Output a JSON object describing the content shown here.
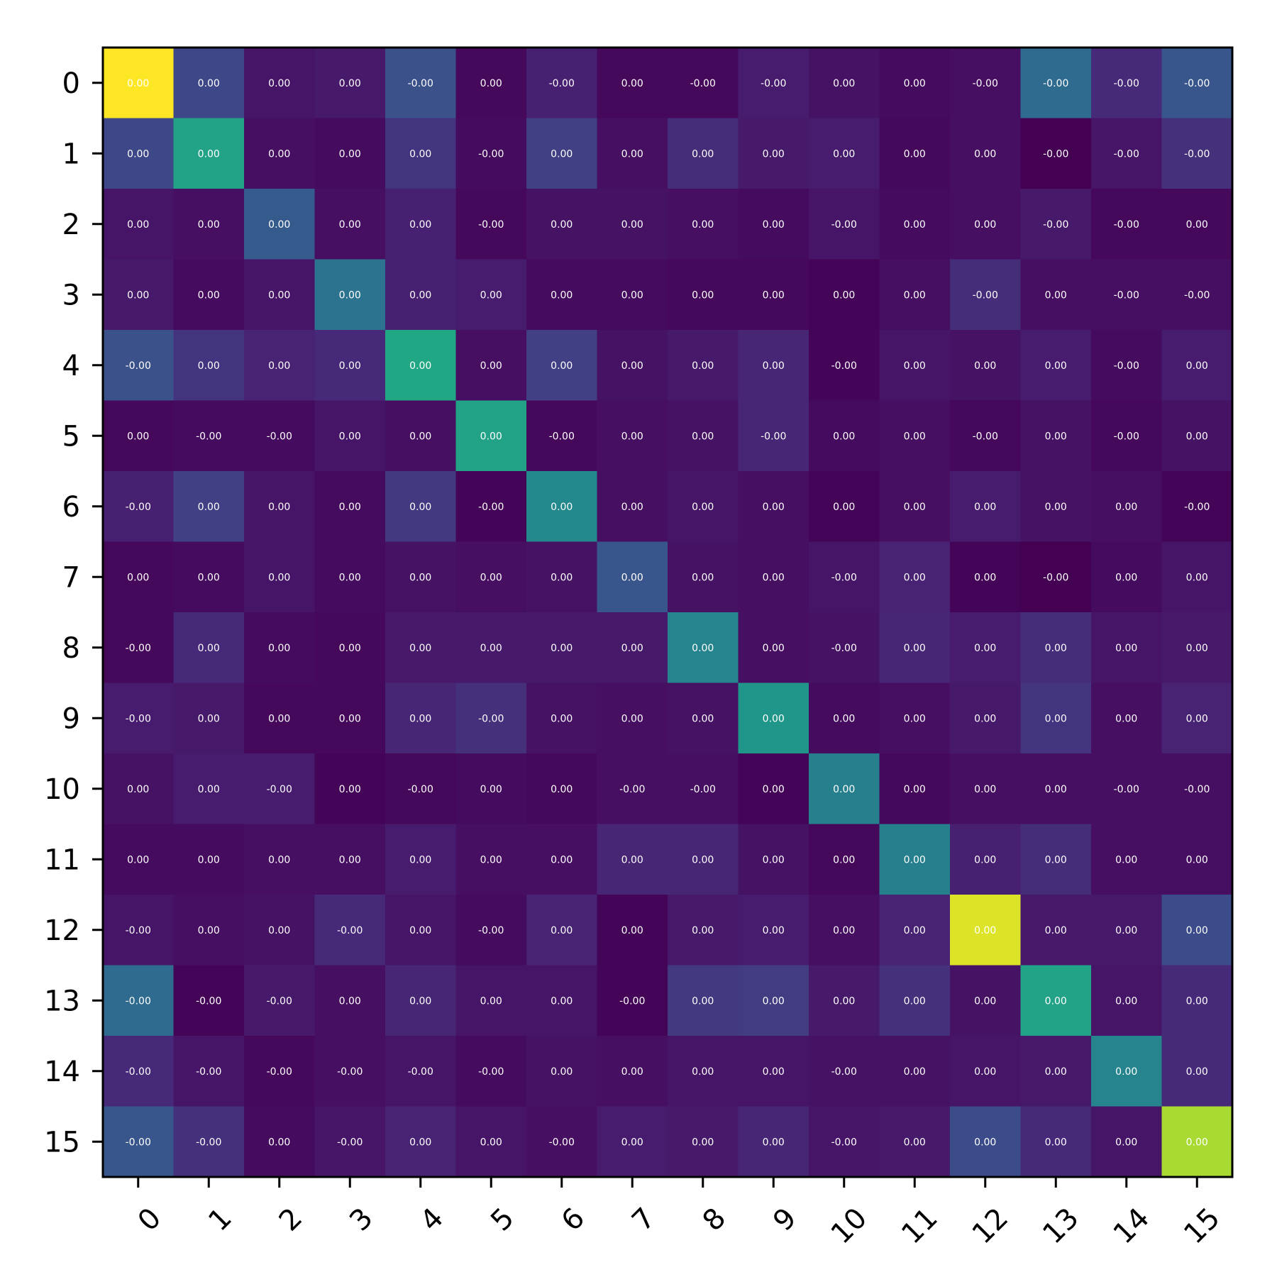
{
  "chart_data": {
    "type": "heatmap",
    "colormap": "viridis",
    "x_labels": [
      "0",
      "1",
      "2",
      "3",
      "4",
      "5",
      "6",
      "7",
      "8",
      "9",
      "10",
      "11",
      "12",
      "13",
      "14",
      "15"
    ],
    "y_labels": [
      "0",
      "1",
      "2",
      "3",
      "4",
      "5",
      "6",
      "7",
      "8",
      "9",
      "10",
      "11",
      "12",
      "13",
      "14",
      "15"
    ],
    "color_values": [
      [
        1.0,
        0.22,
        0.06,
        0.07,
        0.25,
        0.02,
        0.09,
        0.02,
        0.02,
        0.08,
        0.05,
        0.03,
        0.04,
        0.35,
        0.12,
        0.27
      ],
      [
        0.22,
        0.58,
        0.04,
        0.03,
        0.15,
        0.03,
        0.19,
        0.04,
        0.13,
        0.07,
        0.08,
        0.02,
        0.04,
        0.0,
        0.06,
        0.14
      ],
      [
        0.06,
        0.04,
        0.29,
        0.04,
        0.09,
        0.02,
        0.05,
        0.05,
        0.04,
        0.03,
        0.06,
        0.03,
        0.04,
        0.07,
        0.02,
        0.02
      ],
      [
        0.07,
        0.03,
        0.06,
        0.38,
        0.09,
        0.08,
        0.03,
        0.03,
        0.02,
        0.02,
        0.01,
        0.04,
        0.13,
        0.04,
        0.04,
        0.04
      ],
      [
        0.25,
        0.15,
        0.1,
        0.12,
        0.6,
        0.04,
        0.19,
        0.05,
        0.07,
        0.11,
        0.01,
        0.06,
        0.05,
        0.08,
        0.03,
        0.08
      ],
      [
        0.02,
        0.03,
        0.03,
        0.06,
        0.04,
        0.58,
        0.02,
        0.04,
        0.05,
        0.11,
        0.03,
        0.04,
        0.02,
        0.05,
        0.02,
        0.05
      ],
      [
        0.09,
        0.19,
        0.06,
        0.03,
        0.17,
        0.01,
        0.47,
        0.04,
        0.06,
        0.04,
        0.01,
        0.04,
        0.08,
        0.05,
        0.04,
        0.01
      ],
      [
        0.02,
        0.03,
        0.06,
        0.03,
        0.05,
        0.04,
        0.05,
        0.27,
        0.05,
        0.04,
        0.06,
        0.1,
        0.01,
        0.0,
        0.03,
        0.06
      ],
      [
        0.02,
        0.12,
        0.03,
        0.02,
        0.07,
        0.07,
        0.07,
        0.07,
        0.45,
        0.04,
        0.05,
        0.11,
        0.08,
        0.13,
        0.06,
        0.07
      ],
      [
        0.08,
        0.07,
        0.02,
        0.02,
        0.11,
        0.14,
        0.05,
        0.04,
        0.05,
        0.52,
        0.03,
        0.04,
        0.07,
        0.15,
        0.04,
        0.1
      ],
      [
        0.05,
        0.08,
        0.08,
        0.01,
        0.02,
        0.03,
        0.02,
        0.04,
        0.04,
        0.01,
        0.43,
        0.02,
        0.04,
        0.04,
        0.04,
        0.04
      ],
      [
        0.03,
        0.03,
        0.04,
        0.04,
        0.08,
        0.04,
        0.04,
        0.11,
        0.11,
        0.05,
        0.02,
        0.43,
        0.09,
        0.13,
        0.04,
        0.04
      ],
      [
        0.06,
        0.04,
        0.05,
        0.12,
        0.06,
        0.03,
        0.1,
        0.01,
        0.07,
        0.08,
        0.04,
        0.1,
        0.95,
        0.07,
        0.07,
        0.23
      ],
      [
        0.35,
        0.01,
        0.07,
        0.04,
        0.11,
        0.06,
        0.06,
        0.01,
        0.17,
        0.18,
        0.07,
        0.14,
        0.05,
        0.58,
        0.06,
        0.12
      ],
      [
        0.12,
        0.06,
        0.02,
        0.04,
        0.06,
        0.03,
        0.05,
        0.04,
        0.06,
        0.06,
        0.05,
        0.05,
        0.06,
        0.07,
        0.45,
        0.12
      ],
      [
        0.27,
        0.14,
        0.03,
        0.06,
        0.1,
        0.06,
        0.04,
        0.08,
        0.07,
        0.11,
        0.06,
        0.07,
        0.23,
        0.12,
        0.06,
        0.87
      ]
    ],
    "cell_labels": [
      [
        "0.00",
        "0.00",
        "0.00",
        "0.00",
        "-0.00",
        "0.00",
        "-0.00",
        "0.00",
        "-0.00",
        "-0.00",
        "0.00",
        "0.00",
        "-0.00",
        "-0.00",
        "-0.00",
        "-0.00"
      ],
      [
        "0.00",
        "0.00",
        "0.00",
        "0.00",
        "0.00",
        "-0.00",
        "0.00",
        "0.00",
        "0.00",
        "0.00",
        "0.00",
        "0.00",
        "0.00",
        "-0.00",
        "-0.00",
        "-0.00"
      ],
      [
        "0.00",
        "0.00",
        "0.00",
        "0.00",
        "0.00",
        "-0.00",
        "0.00",
        "0.00",
        "0.00",
        "0.00",
        "-0.00",
        "0.00",
        "0.00",
        "-0.00",
        "-0.00",
        "0.00"
      ],
      [
        "0.00",
        "0.00",
        "0.00",
        "0.00",
        "0.00",
        "0.00",
        "0.00",
        "0.00",
        "0.00",
        "0.00",
        "0.00",
        "0.00",
        "-0.00",
        "0.00",
        "-0.00",
        "-0.00"
      ],
      [
        "-0.00",
        "0.00",
        "0.00",
        "0.00",
        "0.00",
        "0.00",
        "0.00",
        "0.00",
        "0.00",
        "0.00",
        "-0.00",
        "0.00",
        "0.00",
        "0.00",
        "-0.00",
        "0.00"
      ],
      [
        "0.00",
        "-0.00",
        "-0.00",
        "0.00",
        "0.00",
        "0.00",
        "-0.00",
        "0.00",
        "0.00",
        "-0.00",
        "0.00",
        "0.00",
        "-0.00",
        "0.00",
        "-0.00",
        "0.00"
      ],
      [
        "-0.00",
        "0.00",
        "0.00",
        "0.00",
        "0.00",
        "-0.00",
        "0.00",
        "0.00",
        "0.00",
        "0.00",
        "0.00",
        "0.00",
        "0.00",
        "0.00",
        "0.00",
        "-0.00"
      ],
      [
        "0.00",
        "0.00",
        "0.00",
        "0.00",
        "0.00",
        "0.00",
        "0.00",
        "0.00",
        "0.00",
        "0.00",
        "-0.00",
        "0.00",
        "0.00",
        "-0.00",
        "0.00",
        "0.00"
      ],
      [
        "-0.00",
        "0.00",
        "0.00",
        "0.00",
        "0.00",
        "0.00",
        "0.00",
        "0.00",
        "0.00",
        "0.00",
        "-0.00",
        "0.00",
        "0.00",
        "0.00",
        "0.00",
        "0.00"
      ],
      [
        "-0.00",
        "0.00",
        "0.00",
        "0.00",
        "0.00",
        "-0.00",
        "0.00",
        "0.00",
        "0.00",
        "0.00",
        "0.00",
        "0.00",
        "0.00",
        "0.00",
        "0.00",
        "0.00"
      ],
      [
        "0.00",
        "0.00",
        "-0.00",
        "0.00",
        "-0.00",
        "0.00",
        "0.00",
        "-0.00",
        "-0.00",
        "0.00",
        "0.00",
        "0.00",
        "0.00",
        "0.00",
        "-0.00",
        "-0.00"
      ],
      [
        "0.00",
        "0.00",
        "0.00",
        "0.00",
        "0.00",
        "0.00",
        "0.00",
        "0.00",
        "0.00",
        "0.00",
        "0.00",
        "0.00",
        "0.00",
        "0.00",
        "0.00",
        "0.00"
      ],
      [
        "-0.00",
        "0.00",
        "0.00",
        "-0.00",
        "0.00",
        "-0.00",
        "0.00",
        "0.00",
        "0.00",
        "0.00",
        "0.00",
        "0.00",
        "0.00",
        "0.00",
        "0.00",
        "0.00"
      ],
      [
        "-0.00",
        "-0.00",
        "-0.00",
        "0.00",
        "0.00",
        "0.00",
        "0.00",
        "-0.00",
        "0.00",
        "0.00",
        "0.00",
        "0.00",
        "0.00",
        "0.00",
        "0.00",
        "0.00"
      ],
      [
        "-0.00",
        "-0.00",
        "-0.00",
        "-0.00",
        "-0.00",
        "-0.00",
        "0.00",
        "0.00",
        "0.00",
        "0.00",
        "-0.00",
        "0.00",
        "0.00",
        "0.00",
        "0.00",
        "0.00"
      ],
      [
        "-0.00",
        "-0.00",
        "0.00",
        "-0.00",
        "0.00",
        "0.00",
        "-0.00",
        "0.00",
        "0.00",
        "0.00",
        "-0.00",
        "0.00",
        "0.00",
        "0.00",
        "0.00",
        "0.00"
      ]
    ],
    "title": "",
    "xlabel": "",
    "ylabel": "",
    "colorbar": false,
    "grid": false,
    "xtick_rotation_deg": 45,
    "label_color": "#ffffff",
    "axis_color": "#000000"
  }
}
